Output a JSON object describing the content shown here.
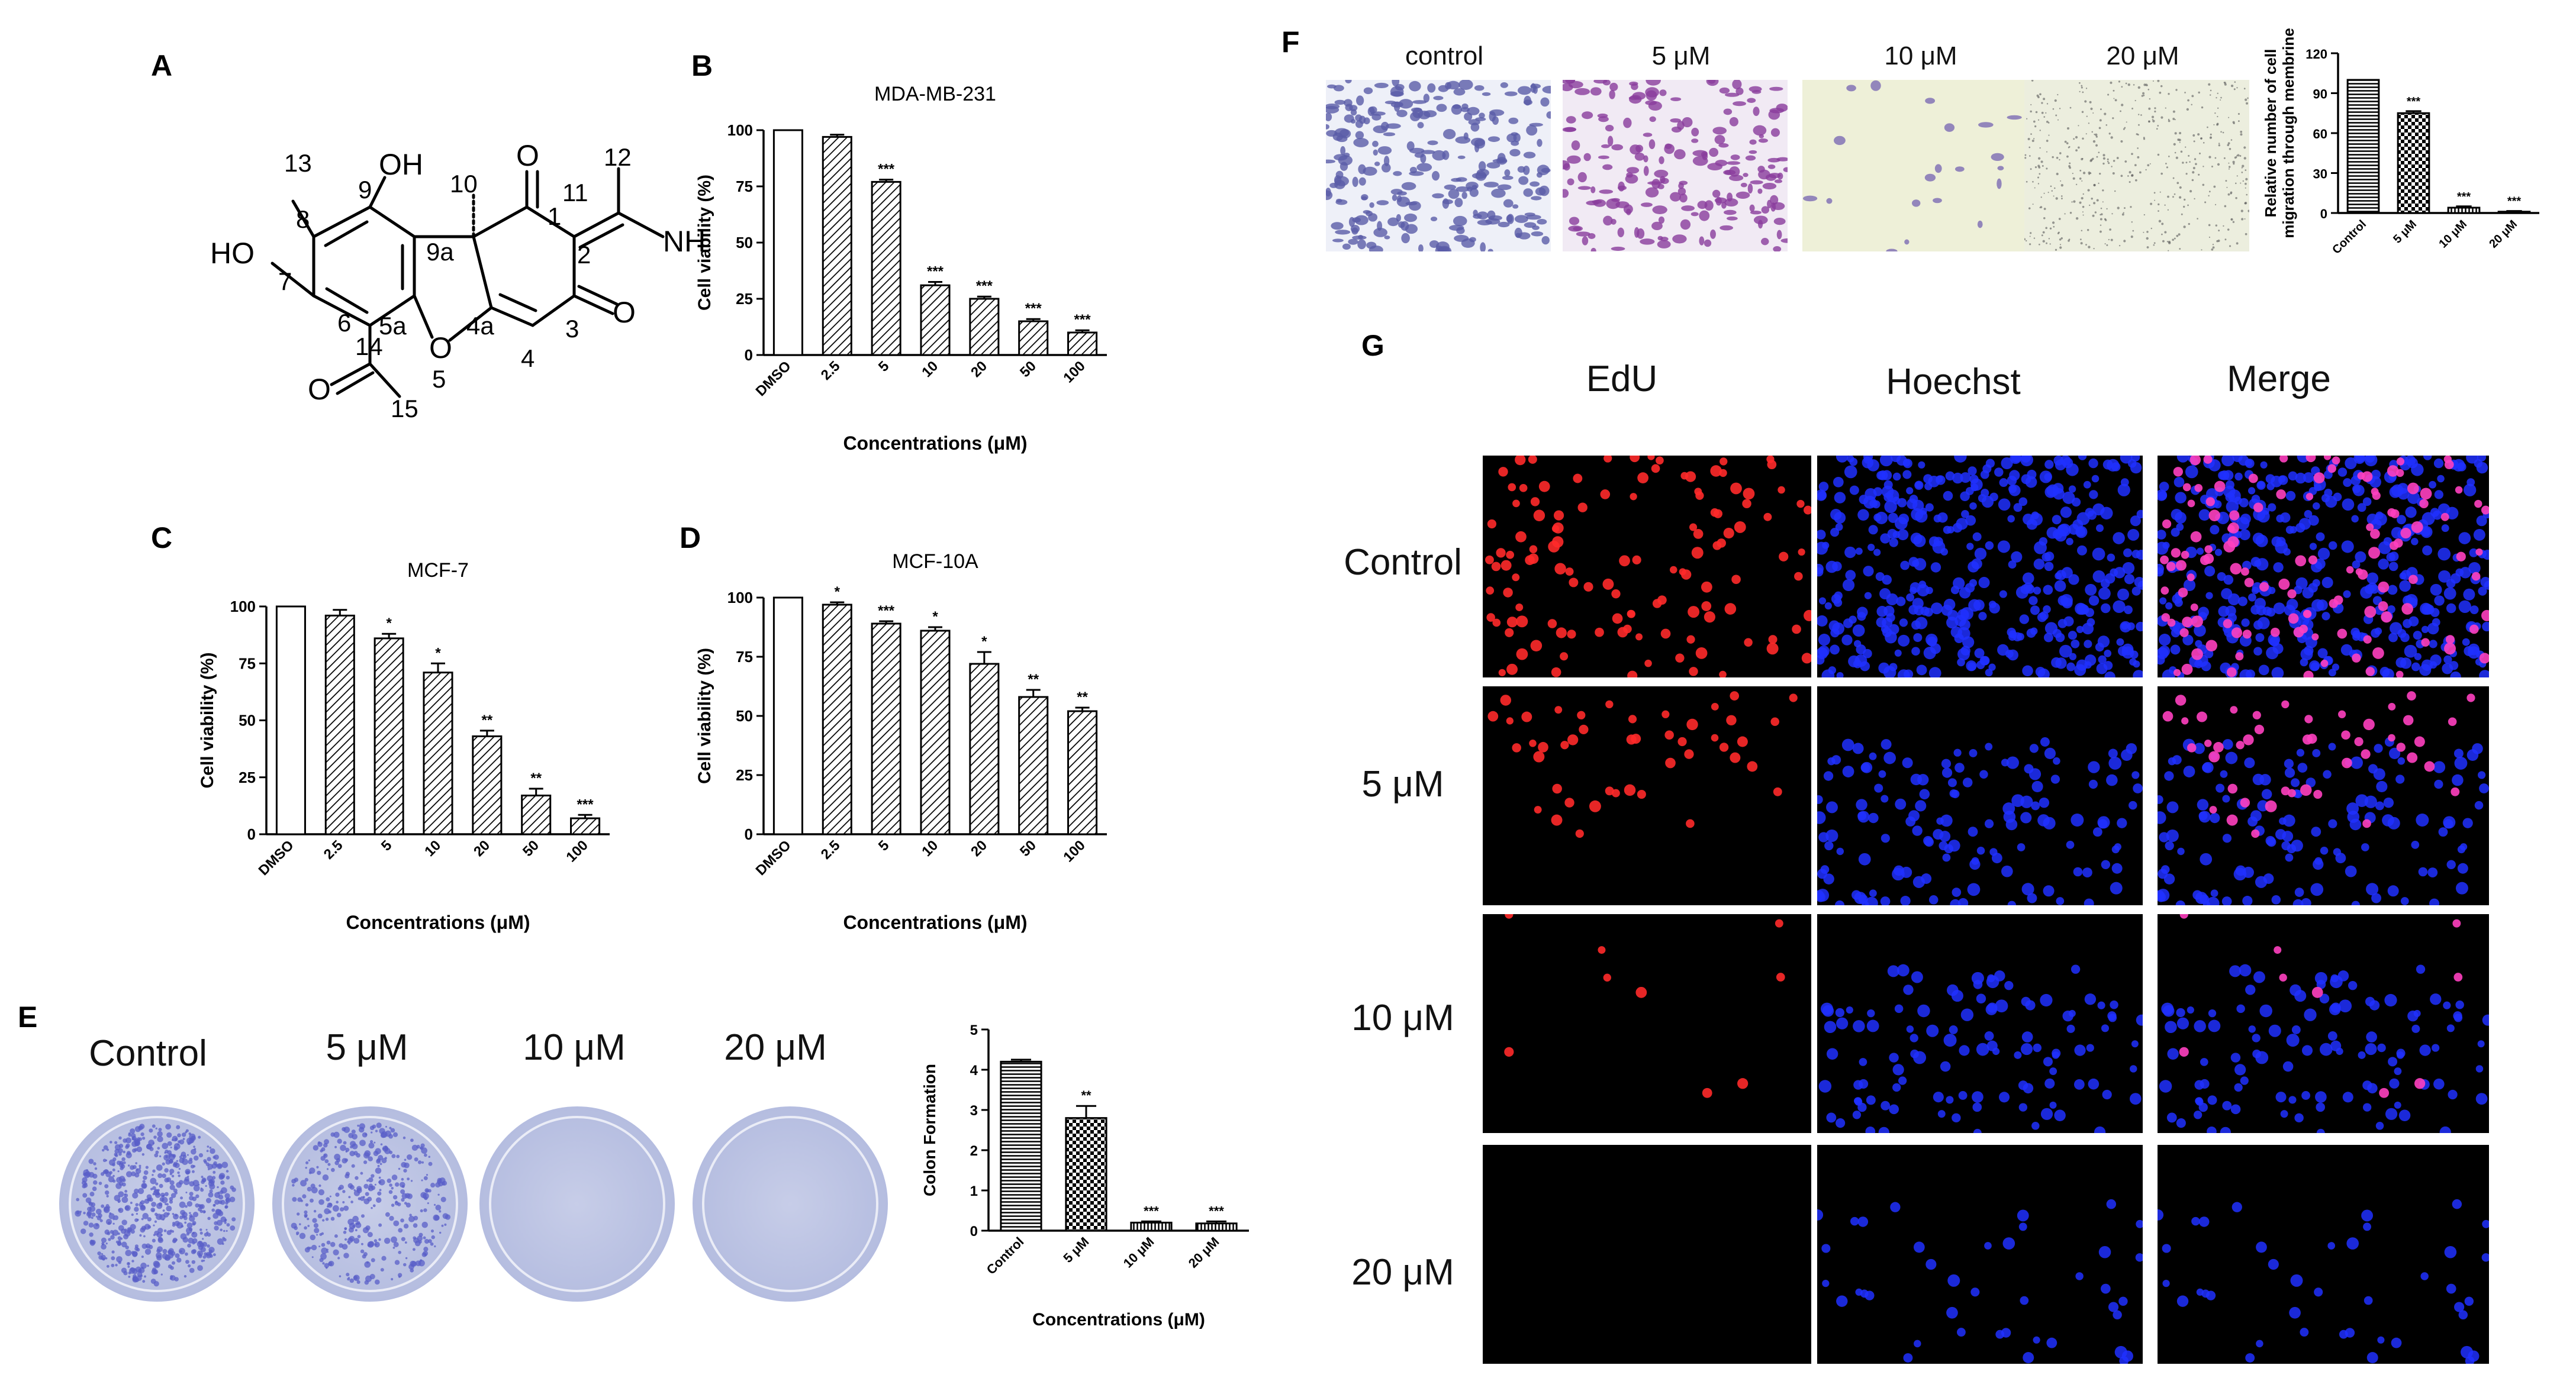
{
  "panels": {
    "a": "A",
    "b": "B",
    "c": "C",
    "d": "D",
    "e": "E",
    "f": "F",
    "g": "G"
  },
  "molecule": {
    "atoms": [
      "13",
      "8",
      "9",
      "OH",
      "10",
      "O",
      "1",
      "12",
      "11",
      "NH",
      "2",
      "HO",
      "7",
      "9a",
      "2",
      "6",
      "5a",
      "4a",
      "3",
      "O",
      "14",
      "O",
      "O",
      "5",
      "4",
      "15"
    ]
  },
  "chart_data": [
    {
      "id": "B",
      "type": "bar",
      "title": "MDA-MB-231",
      "categories": [
        "DMSO",
        "2.5",
        "5",
        "10",
        "20",
        "50",
        "100"
      ],
      "values": [
        100,
        97,
        77,
        31,
        25,
        15,
        10
      ],
      "errors": [
        0,
        1,
        1,
        1.5,
        1,
        1,
        1
      ],
      "significance": [
        "",
        "",
        "***",
        "***",
        "***",
        "***",
        "***"
      ],
      "ylim": [
        0,
        100
      ],
      "yticks": [
        "0",
        "25",
        "50",
        "75",
        "100"
      ],
      "ylabel": "Cell viability (%)",
      "xlabel": "Concentrations (μM)"
    },
    {
      "id": "C",
      "type": "bar",
      "title": "MCF-7",
      "categories": [
        "DMSO",
        "2.5",
        "5",
        "10",
        "20",
        "50",
        "100"
      ],
      "values": [
        100,
        96,
        86,
        71,
        43,
        17,
        7
      ],
      "errors": [
        0,
        2.5,
        2,
        4,
        2.5,
        3,
        1.5
      ],
      "significance": [
        "",
        "",
        "*",
        "*",
        "**",
        "**",
        "***"
      ],
      "ylim": [
        0,
        100
      ],
      "yticks": [
        "0",
        "25",
        "50",
        "75",
        "100"
      ],
      "ylabel": "Cell viability (%)",
      "xlabel": "Concentrations (μM)"
    },
    {
      "id": "D",
      "type": "bar",
      "title": "MCF-10A",
      "categories": [
        "DMSO",
        "2.5",
        "5",
        "10",
        "20",
        "50",
        "100"
      ],
      "values": [
        100,
        97,
        89,
        86,
        72,
        58,
        52
      ],
      "errors": [
        0,
        1,
        1,
        1.5,
        5,
        3,
        1.5
      ],
      "significance": [
        "",
        "*",
        "***",
        "*",
        "*",
        "**",
        "**"
      ],
      "ylim": [
        0,
        100
      ],
      "yticks": [
        "0",
        "25",
        "50",
        "75",
        "100"
      ],
      "ylabel": "Cell viability (%)",
      "xlabel": "Concentrations (μM)"
    },
    {
      "id": "E",
      "type": "bar",
      "title": "",
      "categories": [
        "Control",
        "5 μM",
        "10 μM",
        "20 μM"
      ],
      "values": [
        4.2,
        2.8,
        0.2,
        0.18
      ],
      "errors": [
        0.05,
        0.3,
        0.03,
        0.05
      ],
      "significance": [
        "",
        "**",
        "***",
        "***"
      ],
      "ylim": [
        0,
        5
      ],
      "yticks": [
        "0",
        "1",
        "2",
        "3",
        "4",
        "5"
      ],
      "ylabel": "Colon Formation",
      "xlabel": "Concentrations (μM)"
    },
    {
      "id": "F",
      "type": "bar",
      "title": "",
      "categories": [
        "Control",
        "5 μM",
        "10 μM",
        "20 μM"
      ],
      "values": [
        100,
        75,
        4,
        1
      ],
      "errors": [
        0,
        1.5,
        1,
        0.5
      ],
      "significance": [
        "",
        "***",
        "***",
        "***"
      ],
      "ylim": [
        0,
        120
      ],
      "yticks": [
        "0",
        "30",
        "60",
        "90",
        "120"
      ],
      "ylabel": "Relative number of cell\nmigration through membrine",
      "xlabel": ""
    }
  ],
  "colony": {
    "labels": [
      "Control",
      "5 μM",
      "10 μM",
      "20 μM"
    ],
    "dish_colors": {
      "stained": "#5a5fc8",
      "plate": "#c7cde8",
      "rim": "#3e4aa0"
    },
    "density": [
      1.0,
      0.6,
      0.0,
      0.0
    ]
  },
  "migration": {
    "labels": [
      "control",
      "5 μM",
      "10 μM",
      "20 μM"
    ],
    "backgrounds": [
      "#eef0f8",
      "#f1eaf4",
      "#eef0d8",
      "#eceede"
    ],
    "cell_colors": [
      "#5a5ca8",
      "#8a3c9c",
      "#7c6cb4",
      "#5a5a5a"
    ]
  },
  "edu": {
    "column_labels": [
      "EdU",
      "Hoechst",
      "Merge"
    ],
    "row_labels": [
      "Control",
      "5 μM",
      "10 μM",
      "20 μM"
    ],
    "colors": {
      "edu": "#ff2a2a",
      "hoechst": "#2030ff",
      "merge": "#ff40c0"
    }
  }
}
